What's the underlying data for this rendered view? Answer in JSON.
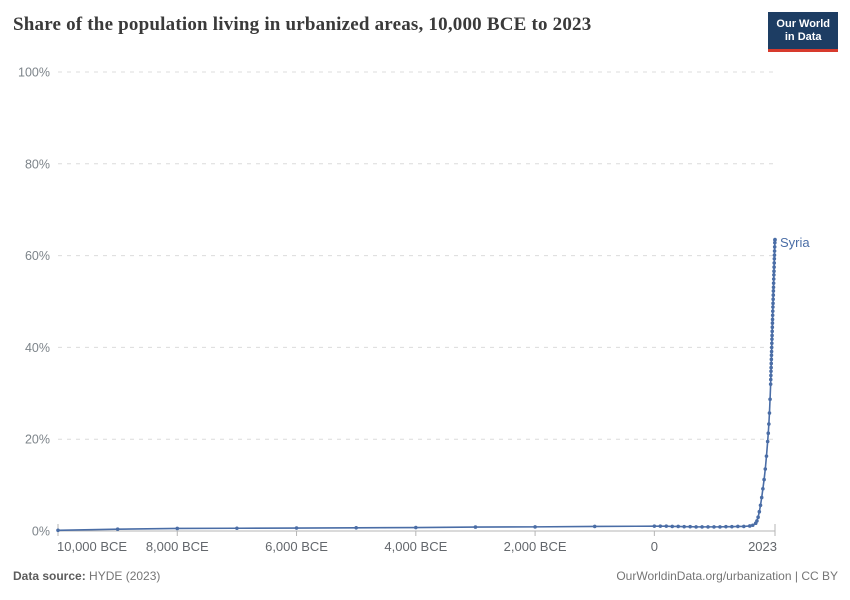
{
  "header": {
    "title": "Share of the population living in urbanized areas, 10,000 BCE to 2023",
    "logo": {
      "line1": "Our World",
      "line2": "in Data"
    }
  },
  "footer": {
    "source_label": "Data source:",
    "source_value": " HYDE (2023)",
    "credit": "OurWorldinData.org/urbanization | CC BY"
  },
  "colors": {
    "series_blue": "#4a6da6",
    "gridline": "#dcdcdc",
    "axis": "#b5b5b5",
    "y_tick_text": "#7d848a",
    "x_tick_text": "#63676c",
    "logo_bg": "#1d3d63",
    "logo_underline": "#d73a2d"
  },
  "chart_data": {
    "type": "line",
    "title": "Share of the population living in urbanized areas, 10,000 BCE to 2023",
    "xlabel": "",
    "ylabel": "",
    "xlim": [
      -10000,
      2023
    ],
    "ylim": [
      0,
      100
    ],
    "grid": "horizontal-dashed",
    "legend_position": "end-of-line-label",
    "x_ticks": [
      {
        "value": -10000,
        "label": "10,000 BCE"
      },
      {
        "value": -8000,
        "label": "8,000 BCE"
      },
      {
        "value": -6000,
        "label": "6,000 BCE"
      },
      {
        "value": -4000,
        "label": "4,000 BCE"
      },
      {
        "value": -2000,
        "label": "2,000 BCE"
      },
      {
        "value": 0,
        "label": "0"
      },
      {
        "value": 2023,
        "label": "2023"
      }
    ],
    "y_ticks": [
      {
        "value": 0,
        "label": "0%"
      },
      {
        "value": 20,
        "label": "20%"
      },
      {
        "value": 40,
        "label": "40%"
      },
      {
        "value": 60,
        "label": "60%"
      },
      {
        "value": 80,
        "label": "80%"
      },
      {
        "value": 100,
        "label": "100%"
      }
    ],
    "series": [
      {
        "name": "Syria",
        "color": "#4a6da6",
        "points": [
          [
            -10000,
            0.15
          ],
          [
            -9000,
            0.4
          ],
          [
            -8000,
            0.55
          ],
          [
            -7000,
            0.6
          ],
          [
            -6000,
            0.65
          ],
          [
            -5000,
            0.7
          ],
          [
            -4000,
            0.75
          ],
          [
            -3000,
            0.85
          ],
          [
            -2000,
            0.9
          ],
          [
            -1000,
            1.0
          ],
          [
            0,
            1.05
          ],
          [
            100,
            1.05
          ],
          [
            200,
            1.05
          ],
          [
            300,
            1.0
          ],
          [
            400,
            1.0
          ],
          [
            500,
            0.95
          ],
          [
            600,
            0.95
          ],
          [
            700,
            0.9
          ],
          [
            800,
            0.9
          ],
          [
            900,
            0.9
          ],
          [
            1000,
            0.9
          ],
          [
            1100,
            0.9
          ],
          [
            1200,
            0.95
          ],
          [
            1300,
            0.95
          ],
          [
            1400,
            1.0
          ],
          [
            1500,
            1.0
          ],
          [
            1600,
            1.1
          ],
          [
            1650,
            1.25
          ],
          [
            1700,
            1.7
          ],
          [
            1720,
            2.2
          ],
          [
            1740,
            3.0
          ],
          [
            1760,
            4.2
          ],
          [
            1780,
            5.6
          ],
          [
            1800,
            7.3
          ],
          [
            1820,
            9.2
          ],
          [
            1840,
            11.2
          ],
          [
            1860,
            13.5
          ],
          [
            1880,
            16.3
          ],
          [
            1900,
            19.5
          ],
          [
            1910,
            21.3
          ],
          [
            1920,
            23.3
          ],
          [
            1930,
            25.7
          ],
          [
            1940,
            28.7
          ],
          [
            1950,
            32.0
          ],
          [
            1952,
            33.0
          ],
          [
            1954,
            33.9
          ],
          [
            1956,
            34.8
          ],
          [
            1958,
            35.6
          ],
          [
            1960,
            36.5
          ],
          [
            1962,
            37.4
          ],
          [
            1964,
            38.3
          ],
          [
            1966,
            39.1
          ],
          [
            1968,
            40.0
          ],
          [
            1970,
            40.9
          ],
          [
            1972,
            41.8
          ],
          [
            1974,
            42.6
          ],
          [
            1976,
            43.5
          ],
          [
            1978,
            44.4
          ],
          [
            1980,
            45.3
          ],
          [
            1982,
            46.1
          ],
          [
            1984,
            47.0
          ],
          [
            1986,
            47.9
          ],
          [
            1988,
            48.8
          ],
          [
            1990,
            49.6
          ],
          [
            1992,
            50.5
          ],
          [
            1994,
            51.4
          ],
          [
            1996,
            52.3
          ],
          [
            1998,
            53.1
          ],
          [
            2000,
            54.0
          ],
          [
            2002,
            54.9
          ],
          [
            2004,
            55.8
          ],
          [
            2006,
            56.6
          ],
          [
            2008,
            57.5
          ],
          [
            2010,
            58.4
          ],
          [
            2012,
            59.3
          ],
          [
            2014,
            60.1
          ],
          [
            2016,
            61.0
          ],
          [
            2018,
            61.9
          ],
          [
            2020,
            62.8
          ],
          [
            2022,
            63.4
          ],
          [
            2023,
            63.5
          ]
        ]
      }
    ]
  }
}
